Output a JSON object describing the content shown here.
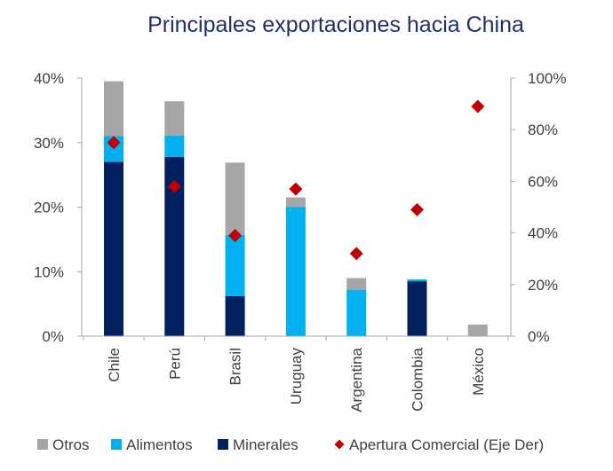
{
  "chart_data": {
    "type": "bar",
    "title": "Principales exportaciones hacia China",
    "categories": [
      "Chile",
      "Perú",
      "Brasil",
      "Uruguay",
      "Argentina",
      "Colombia",
      "México"
    ],
    "series": [
      {
        "name": "Minerales",
        "color": "#002060",
        "values": [
          27.0,
          27.8,
          6.2,
          0.0,
          0.0,
          8.5,
          0.0
        ]
      },
      {
        "name": "Alimentos",
        "color": "#00b0f0",
        "values": [
          4.0,
          3.3,
          9.5,
          20.0,
          7.2,
          0.3,
          0.0
        ]
      },
      {
        "name": "Otros",
        "color": "#a6a6a6",
        "values": [
          8.5,
          5.3,
          11.2,
          1.5,
          1.8,
          0.0,
          1.8
        ]
      }
    ],
    "line_series": {
      "name": "Apertura Comercial (Eje Der)",
      "color": "#c00000",
      "marker": "diamond",
      "axis": "right",
      "values": [
        75,
        58,
        39,
        57,
        32,
        49,
        89
      ]
    },
    "y_left": {
      "ylim": [
        0,
        40
      ],
      "ticks": [
        "0%",
        "10%",
        "20%",
        "30%",
        "40%"
      ]
    },
    "y_right": {
      "ylim": [
        0,
        100
      ],
      "ticks": [
        "0%",
        "20%",
        "40%",
        "60%",
        "80%",
        "100%"
      ]
    },
    "legend": {
      "placement": "bottom",
      "items": [
        {
          "label": "Otros",
          "kind": "square",
          "color": "#a6a6a6"
        },
        {
          "label": "Alimentos",
          "kind": "square",
          "color": "#00b0f0"
        },
        {
          "label": "Minerales",
          "kind": "square",
          "color": "#002060"
        },
        {
          "label": "Apertura Comercial (Eje Der)",
          "kind": "diamond",
          "color": "#c00000"
        }
      ]
    },
    "grid": false,
    "stacked": true
  }
}
